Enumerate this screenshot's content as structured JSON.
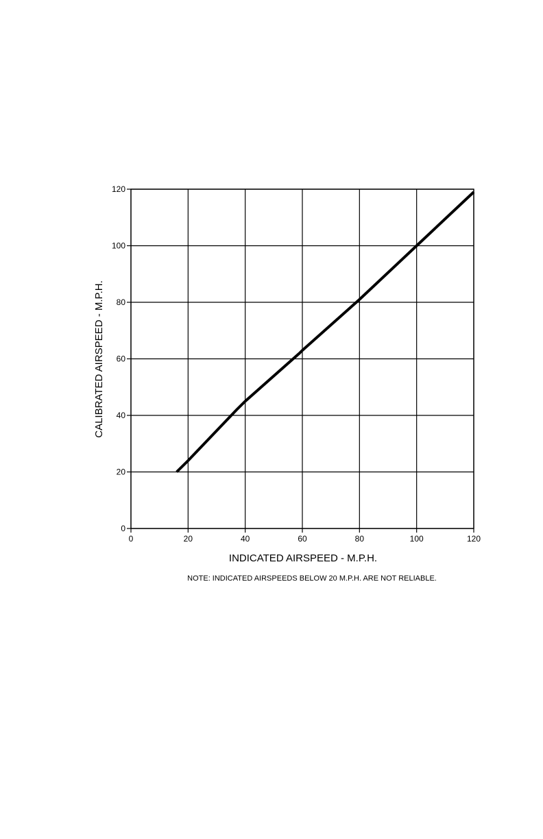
{
  "chart_data": {
    "type": "line",
    "xlabel": "INDICATED AIRSPEED - M.P.H.",
    "ylabel": "CALIBRATED AIRSPEED - M.P.H.",
    "xlim": [
      0,
      120
    ],
    "ylim": [
      0,
      120
    ],
    "xticks": [
      "0",
      "20",
      "40",
      "60",
      "80",
      "100",
      "120"
    ],
    "yticks": [
      "0",
      "20",
      "40",
      "60",
      "80",
      "100",
      "120"
    ],
    "grid": true,
    "series": [
      {
        "x": [
          16,
          20,
          37,
          40,
          59,
          60,
          80,
          100,
          120
        ],
        "y": [
          20,
          24,
          42,
          45,
          62,
          63,
          81,
          100,
          119
        ]
      }
    ],
    "note": "NOTE:  INDICATED AIRSPEEDS BELOW 20 M.P.H.  ARE NOT RELIABLE."
  }
}
